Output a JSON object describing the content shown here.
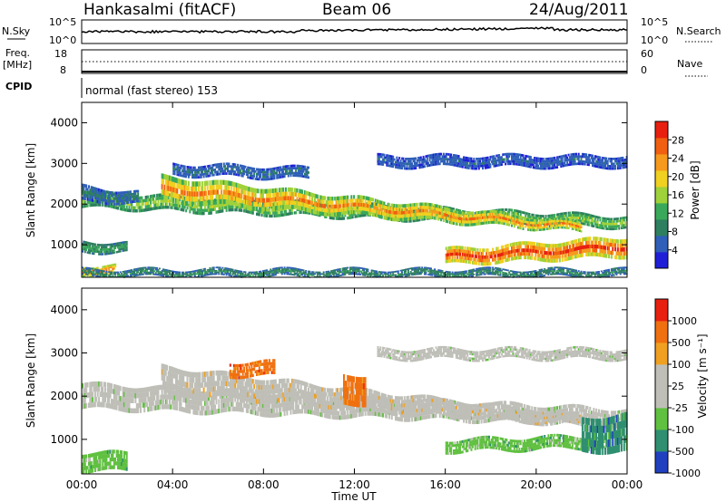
{
  "header": {
    "title": "Hankasalmi (fitACF)",
    "beam": "Beam 06",
    "date": "24/Aug/2011"
  },
  "top_panels": {
    "nsky_label": "N.Sky",
    "nsky_ticks": [
      "10^5",
      "10^0"
    ],
    "nsearch_label": "N.Search",
    "nsearch_ticks": [
      "10^5",
      "10^0"
    ],
    "freq_label_1": "Freq.",
    "freq_label_2": "[MHz]",
    "freq_ticks": [
      "18",
      "8"
    ],
    "nave_label": "Nave",
    "nave_ticks": [
      "60",
      "0"
    ],
    "cpid_label": "CPID",
    "cpid_text": "normal (fast stereo) 153"
  },
  "chart_data": [
    {
      "type": "heatmap",
      "panel": "power",
      "ylabel": "Slant Range [km]",
      "yticks": [
        "1000",
        "2000",
        "3000",
        "4000"
      ],
      "ylim": [
        200,
        4500
      ],
      "xlim": [
        0,
        24
      ],
      "colorbar": {
        "label": "Power [dB]",
        "ticks": [
          "4",
          "8",
          "12",
          "16",
          "20",
          "24",
          "28"
        ],
        "colors": [
          "#1f1fd8",
          "#2f5fb8",
          "#2e7f5f",
          "#3aa85a",
          "#9fd13a",
          "#f0d020",
          "#f59a1c",
          "#f06010",
          "#e82010"
        ]
      },
      "bands": [
        {
          "t": [
            0,
            24
          ],
          "r0": [
            2300,
            1700
          ],
          "r1": [
            1900,
            1400
          ],
          "level": 14
        },
        {
          "t": [
            3.5,
            22
          ],
          "r0": [
            2700,
            1550
          ],
          "r1": [
            2050,
            1300
          ],
          "level": 22
        },
        {
          "t": [
            0,
            2.5
          ],
          "r0": [
            2450,
            2300
          ],
          "r1": [
            2050,
            2000
          ],
          "level": 6
        },
        {
          "t": [
            0,
            2
          ],
          "r0": [
            1100,
            1050
          ],
          "r1": [
            800,
            800
          ],
          "level": 10
        },
        {
          "t": [
            0,
            1.5
          ],
          "r0": [
            500,
            500
          ],
          "r1": [
            250,
            250
          ],
          "level": 24
        },
        {
          "t": [
            16,
            24
          ],
          "r0": [
            900,
            1200
          ],
          "r1": [
            500,
            700
          ],
          "level": 27
        },
        {
          "t": [
            13,
            24
          ],
          "r0": [
            3200,
            3200
          ],
          "r1": [
            2900,
            2900
          ],
          "level": 4
        },
        {
          "t": [
            4,
            10
          ],
          "r0": [
            3000,
            2900
          ],
          "r1": [
            2700,
            2600
          ],
          "level": 5
        },
        {
          "t": [
            0,
            24
          ],
          "r0": [
            400,
            400
          ],
          "r1": [
            200,
            200
          ],
          "level": 8
        }
      ]
    },
    {
      "type": "heatmap",
      "panel": "velocity",
      "ylabel": "Slant Range [km]",
      "yticks": [
        "1000",
        "2000",
        "3000",
        "4000"
      ],
      "ylim": [
        200,
        4500
      ],
      "xlim": [
        0,
        24
      ],
      "xticks": [
        "00:00",
        "04:00",
        "08:00",
        "12:00",
        "16:00",
        "20:00",
        "00:00"
      ],
      "xlabel": "Time UT",
      "colorbar": {
        "label": "Velocity [m s⁻¹]",
        "ticks": [
          "1000",
          "500",
          "100",
          "25",
          "-25",
          "-100",
          "-500",
          "-1000"
        ],
        "colors": [
          "#2040c0",
          "#2f8f70",
          "#60c040",
          "#bfbfb8",
          "#bfbfb8",
          "#f0a020",
          "#f07010",
          "#e82010"
        ]
      },
      "bands": [
        {
          "t": [
            0,
            24
          ],
          "r0": [
            2300,
            1700
          ],
          "r1": [
            1700,
            1300
          ],
          "level": 3
        },
        {
          "t": [
            3.5,
            22
          ],
          "r0": [
            2700,
            1550
          ],
          "r1": [
            2050,
            1300
          ],
          "level": 4
        },
        {
          "t": [
            16,
            23
          ],
          "r0": [
            1000,
            1100
          ],
          "r1": [
            700,
            800
          ],
          "level": 2
        },
        {
          "t": [
            6.5,
            8.5
          ],
          "r0": [
            2800,
            2800
          ],
          "r1": [
            2450,
            2450
          ],
          "level": 6
        },
        {
          "t": [
            11.5,
            12.5
          ],
          "r0": [
            2500,
            2500
          ],
          "r1": [
            1800,
            1800
          ],
          "level": 6
        },
        {
          "t": [
            0,
            2
          ],
          "r0": [
            700,
            700
          ],
          "r1": [
            250,
            250
          ],
          "level": 2
        },
        {
          "t": [
            13,
            24
          ],
          "r0": [
            3100,
            3100
          ],
          "r1": [
            2850,
            2850
          ],
          "level": 3
        },
        {
          "t": [
            22,
            24
          ],
          "r0": [
            1500,
            1600
          ],
          "r1": [
            700,
            700
          ],
          "level": 1
        }
      ]
    }
  ]
}
